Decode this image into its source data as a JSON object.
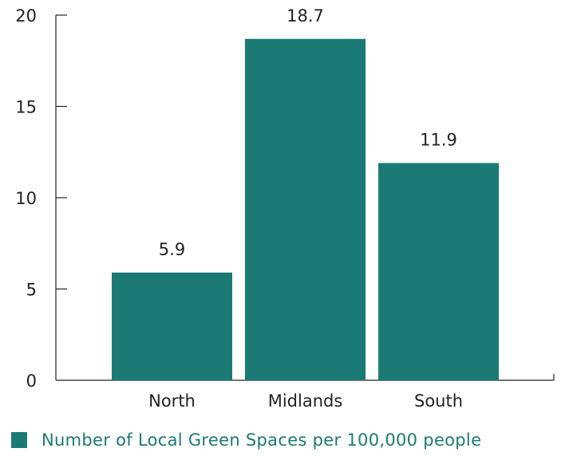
{
  "chart_data": {
    "type": "bar",
    "categories": [
      "North",
      "Midlands",
      "South"
    ],
    "series": [
      {
        "name": "Number of Local Green Spaces per 100,000 people",
        "values": [
          5.9,
          18.7,
          11.9
        ]
      }
    ],
    "data_labels": [
      "5.9",
      "18.7",
      "11.9"
    ],
    "y_ticks": [
      "0",
      "5",
      "10",
      "15",
      "20"
    ],
    "ylim": [
      0,
      20
    ],
    "yticks": [
      0,
      5,
      10,
      15,
      20
    ],
    "legend_position": "bottom-left",
    "grid": false,
    "colors": {
      "bar": "#1b7b74",
      "legend_text": "#1d7a73",
      "axis": "#222222"
    }
  }
}
